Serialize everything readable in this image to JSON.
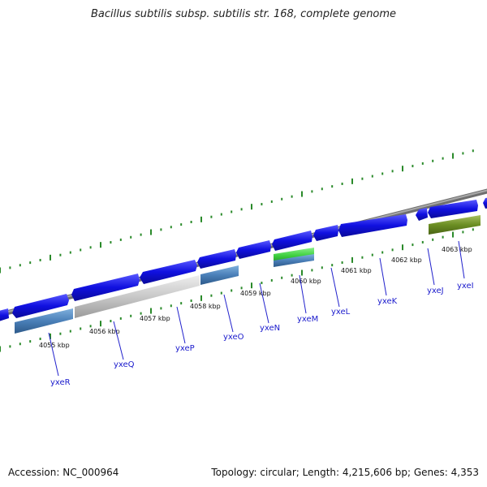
{
  "title": "Bacillus subtilis subsp. subtilis str. 168, complete genome",
  "footer": {
    "accession": "Accession: NC_000964",
    "summary": "Topology: circular; Length: 4,215,606 bp; Genes: 4,353"
  },
  "colors": {
    "backbone": "#8a8a8a",
    "forward_gene": "#1010e0",
    "tick": "#2a8a2a",
    "label_line": "#2222cc",
    "label_text": "#1a1acc"
  },
  "ticks": [
    "4055 kbp",
    "4056 kbp",
    "4057 kbp",
    "4058 kbp",
    "4059 kbp",
    "4060 kbp",
    "4061 kbp",
    "4062 kbp",
    "4063 kbp"
  ],
  "genes": [
    {
      "name": "yxeR",
      "color": "#4a7fb8"
    },
    {
      "name": "yxeQ",
      "color": "#c8c8c8"
    },
    {
      "name": "yxeP",
      "color": "#c8c8c8"
    },
    {
      "name": "yxeO",
      "color": "#4a7fb8"
    },
    {
      "name": "yxeN",
      "color": "#1010e0"
    },
    {
      "name": "yxeM",
      "color": "#3ecf3e"
    },
    {
      "name": "yxeL",
      "color": "#1010e0"
    },
    {
      "name": "yxeK",
      "color": "#1010e0"
    },
    {
      "name": "yxeJ",
      "color": "#1010e0"
    },
    {
      "name": "yxeI",
      "color": "#6b8e23"
    }
  ]
}
